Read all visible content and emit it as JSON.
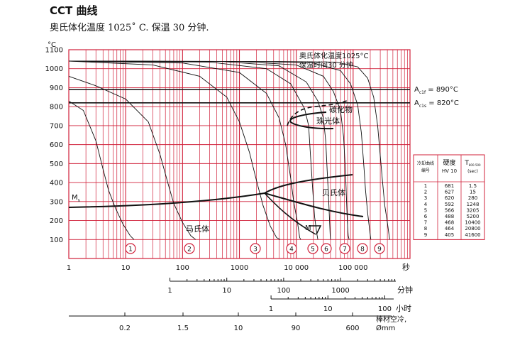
{
  "title": "CCT 曲线",
  "subtitle": "奥氏体化温度 1025˚ C. 保温 30 分钟.",
  "chart_data": {
    "type": "line",
    "ylabel": "°C",
    "yticks": [
      100,
      200,
      300,
      400,
      500,
      600,
      700,
      800,
      900,
      1000,
      1100
    ],
    "ylim": [
      0,
      1100
    ],
    "xscale": "log",
    "xlim": [
      1,
      1000000
    ],
    "x_axis_seconds": {
      "ticks": [
        1,
        10,
        100,
        1000,
        10000,
        100000
      ],
      "labels": [
        "1",
        "10",
        "100",
        "1000",
        "10 000",
        "100 000"
      ],
      "unit": "秒"
    },
    "x_axis_minutes": {
      "ticks": [
        1,
        10,
        100,
        1000
      ],
      "labels": [
        "1",
        "10",
        "100",
        "1000"
      ],
      "unit": "分钟"
    },
    "x_axis_hours": {
      "ticks": [
        1,
        10,
        100
      ],
      "labels": [
        "1",
        "10",
        "100"
      ],
      "unit": "小时"
    },
    "x_axis_bar": {
      "ticks": [
        0.2,
        1.5,
        10,
        90,
        600
      ],
      "labels": [
        "0.2",
        "1.5",
        "10",
        "90",
        "600"
      ],
      "unit_lines": [
        "棒材空冷,",
        "Ømm"
      ]
    },
    "annotation": [
      "奥氏体化温度1025°C",
      "保温时间30 分钟"
    ],
    "reference_lines": [
      {
        "y": 890,
        "label_main": "A",
        "label_sub": "c1f",
        "label_rest": " = 890°C"
      },
      {
        "y": 820,
        "label_main": "A",
        "label_sub": "c1s",
        "label_rest": " = 820°C"
      }
    ],
    "regions": [
      "碳化物",
      "珠光体",
      "贝氏体",
      "马氏体"
    ],
    "ms_label": {
      "main": "M",
      "sub": "s"
    },
    "mf_label": "M",
    "curve_labels": [
      "1",
      "2",
      "3",
      "4",
      "5",
      "6",
      "7",
      "8",
      "9"
    ],
    "series": [
      {
        "points": [
          [
            1,
            830
          ],
          [
            1.8,
            780
          ],
          [
            3,
            620
          ],
          [
            4,
            470
          ],
          [
            5,
            360
          ],
          [
            6.5,
            270
          ],
          [
            9,
            180
          ],
          [
            12,
            120
          ],
          [
            14,
            100
          ]
        ]
      },
      {
        "points": [
          [
            1,
            960
          ],
          [
            3,
            910
          ],
          [
            10,
            840
          ],
          [
            25,
            720
          ],
          [
            40,
            550
          ],
          [
            55,
            400
          ],
          [
            70,
            290
          ],
          [
            100,
            190
          ],
          [
            140,
            120
          ],
          [
            170,
            100
          ]
        ]
      },
      {
        "points": [
          [
            1,
            1040
          ],
          [
            30,
            1020
          ],
          [
            200,
            960
          ],
          [
            600,
            850
          ],
          [
            1000,
            720
          ],
          [
            1500,
            560
          ],
          [
            2000,
            410
          ],
          [
            2600,
            280
          ],
          [
            3500,
            170
          ],
          [
            4500,
            110
          ],
          [
            5200,
            100
          ]
        ]
      },
      {
        "points": [
          [
            1,
            1040
          ],
          [
            100,
            1030
          ],
          [
            1000,
            980
          ],
          [
            3000,
            870
          ],
          [
            5000,
            740
          ],
          [
            6500,
            600
          ],
          [
            8000,
            420
          ],
          [
            9000,
            300
          ],
          [
            10500,
            190
          ],
          [
            11500,
            110
          ],
          [
            12000,
            100
          ]
        ]
      },
      {
        "points": [
          [
            1,
            1040
          ],
          [
            300,
            1035
          ],
          [
            3000,
            1000
          ],
          [
            8000,
            920
          ],
          [
            14000,
            790
          ],
          [
            16500,
            700
          ],
          [
            18000,
            520
          ],
          [
            19500,
            360
          ],
          [
            21000,
            220
          ],
          [
            23000,
            130
          ],
          [
            24000,
            100
          ]
        ]
      },
      {
        "points": [
          [
            1,
            1040
          ],
          [
            500,
            1038
          ],
          [
            5000,
            1015
          ],
          [
            15000,
            930
          ],
          [
            24000,
            830
          ],
          [
            30000,
            740
          ],
          [
            33000,
            620
          ],
          [
            35000,
            460
          ],
          [
            37000,
            320
          ],
          [
            38500,
            200
          ],
          [
            39500,
            120
          ],
          [
            40000,
            100
          ]
        ]
      },
      {
        "points": [
          [
            1,
            1040
          ],
          [
            1000,
            1038
          ],
          [
            10000,
            1020
          ],
          [
            30000,
            960
          ],
          [
            45000,
            880
          ],
          [
            60000,
            780
          ],
          [
            68000,
            640
          ],
          [
            73000,
            470
          ],
          [
            76000,
            330
          ],
          [
            79000,
            200
          ],
          [
            82000,
            120
          ],
          [
            85000,
            100
          ]
        ]
      },
      {
        "points": [
          [
            1,
            1040
          ],
          [
            2000,
            1038
          ],
          [
            20000,
            1030
          ],
          [
            60000,
            990
          ],
          [
            90000,
            920
          ],
          [
            120000,
            810
          ],
          [
            140000,
            660
          ],
          [
            155000,
            480
          ],
          [
            165000,
            360
          ],
          [
            180000,
            240
          ],
          [
            195000,
            150
          ],
          [
            205000,
            100
          ]
        ]
      },
      {
        "points": [
          [
            1,
            1040
          ],
          [
            5000,
            1038
          ],
          [
            50000,
            1035
          ],
          [
            120000,
            1010
          ],
          [
            180000,
            950
          ],
          [
            230000,
            850
          ],
          [
            270000,
            700
          ],
          [
            300000,
            540
          ],
          [
            330000,
            400
          ],
          [
            360000,
            280
          ],
          [
            400000,
            190
          ],
          [
            430000,
            120
          ],
          [
            440000,
            100
          ]
        ]
      }
    ],
    "data_labels": [
      {
        "name": "hardness-header",
        "text": "硬度"
      },
      {
        "name": "hardness-unit",
        "text": "HV 10"
      }
    ],
    "table": {
      "headers": [
        [
          "冷却曲线",
          "编号"
        ],
        [
          "硬度",
          "HV 10"
        ],
        [
          "T",
          "800-500",
          "(sec)"
        ]
      ],
      "rows": [
        [
          "1",
          "681",
          "1.5"
        ],
        [
          "2",
          "627",
          "15"
        ],
        [
          "3",
          "620",
          "280"
        ],
        [
          "4",
          "592",
          "1248"
        ],
        [
          "5",
          "566",
          "3205"
        ],
        [
          "6",
          "488",
          "5200"
        ],
        [
          "7",
          "468",
          "10400"
        ],
        [
          "8",
          "464",
          "20800"
        ],
        [
          "9",
          "405",
          "41600"
        ]
      ]
    }
  }
}
